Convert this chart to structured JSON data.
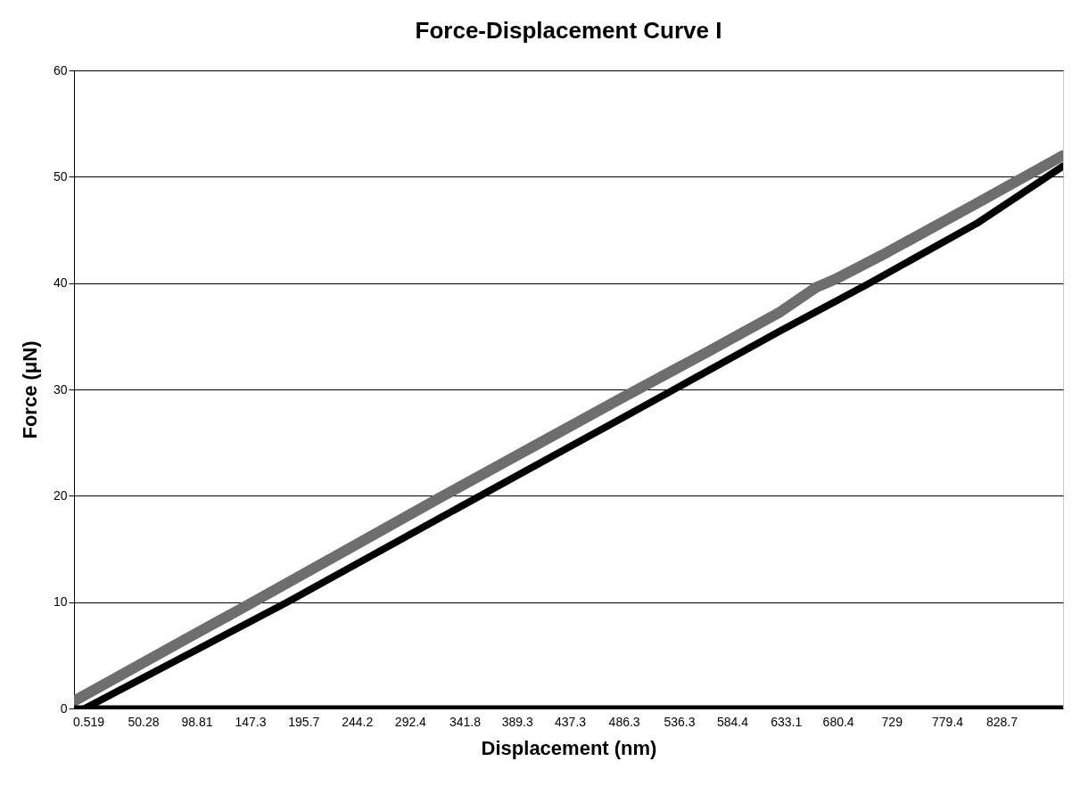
{
  "chart_data": {
    "type": "line",
    "title": "Force-Displacement Curve I",
    "xlabel": "Displacement (nm)",
    "ylabel": "Force (μN)",
    "xlim": [
      -12.4,
      884.5
    ],
    "xticks": [
      0.519,
      50.28,
      98.81,
      147.3,
      195.7,
      244.2,
      292.4,
      341.8,
      389.3,
      437.3,
      486.3,
      536.3,
      584.4,
      633.1,
      680.4,
      729,
      779.4,
      828.7
    ],
    "ylim": [
      0,
      60
    ],
    "yticks": [
      0,
      10,
      20,
      30,
      40,
      50,
      60
    ],
    "grid": "y",
    "line_style": "solid",
    "series": [
      {
        "color": "#6e6e6e",
        "x": [
          -12.4,
          78.2,
          142.9,
          239.9,
          320.8,
          401.7,
          482.6,
          563.4,
          628.1,
          660.5,
          676.7,
          725.2,
          806.1,
          884.5
        ],
        "values": [
          0.7,
          5.9,
          9.6,
          15.2,
          19.9,
          24.5,
          29.1,
          33.6,
          37.3,
          39.6,
          40.3,
          42.9,
          47.5,
          52
        ]
      },
      {
        "color": "#000000",
        "x": [
          -2.7,
          78.2,
          180.9,
          320.8,
          482.6,
          628.1,
          709.0,
          806.1,
          884.5
        ],
        "values": [
          0,
          4.4,
          10,
          18.0,
          27.2,
          35.5,
          40,
          45.6,
          51
        ]
      },
      {
        "color": "#000000",
        "x": [
          -12.4,
          884.5
        ],
        "values": [
          0,
          0
        ]
      }
    ]
  }
}
